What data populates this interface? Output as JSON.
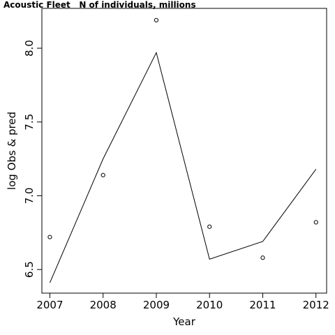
{
  "chart_data": {
    "type": "line",
    "title": "Acoustic Fleet   N of individuals, millions",
    "xlabel": "Year",
    "ylabel": "log Obs & pred",
    "x": [
      2007,
      2008,
      2009,
      2010,
      2011,
      2012
    ],
    "xlim": [
      2006.85,
      2012.2
    ],
    "ylim": [
      6.34,
      8.27
    ],
    "x_ticks": [
      "2007",
      "2008",
      "2009",
      "2010",
      "2011",
      "2012"
    ],
    "y_ticks": [
      "6.5",
      "7.0",
      "7.5",
      "8.0"
    ],
    "grid": false,
    "series": [
      {
        "style": "points",
        "marker": "open-circle",
        "values": [
          6.72,
          7.14,
          8.19,
          6.79,
          6.58,
          6.82
        ]
      },
      {
        "style": "line",
        "values": [
          6.41,
          7.25,
          7.97,
          6.57,
          6.69,
          7.18
        ]
      }
    ],
    "colors": {
      "line": "#000000",
      "points": "#000000"
    }
  }
}
